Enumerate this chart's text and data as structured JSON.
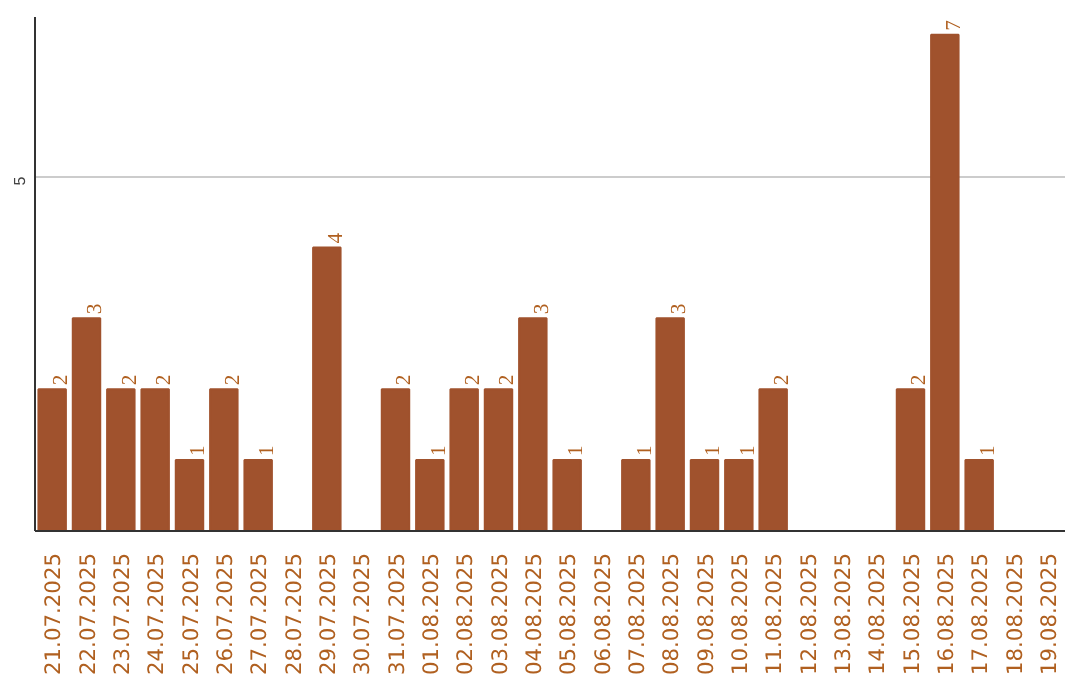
{
  "chart_data": {
    "type": "bar",
    "categories": [
      "21.07.2025",
      "22.07.2025",
      "23.07.2025",
      "24.07.2025",
      "25.07.2025",
      "26.07.2025",
      "27.07.2025",
      "28.07.2025",
      "29.07.2025",
      "30.07.2025",
      "31.07.2025",
      "01.08.2025",
      "02.08.2025",
      "03.08.2025",
      "04.08.2025",
      "05.08.2025",
      "06.08.2025",
      "07.08.2025",
      "08.08.2025",
      "09.08.2025",
      "10.08.2025",
      "11.08.2025",
      "12.08.2025",
      "13.08.2025",
      "14.08.2025",
      "15.08.2025",
      "16.08.2025",
      "17.08.2025",
      "18.08.2025",
      "19.08.2025"
    ],
    "values": [
      2,
      3,
      2,
      2,
      1,
      2,
      1,
      0,
      4,
      0,
      2,
      1,
      2,
      2,
      3,
      1,
      0,
      1,
      3,
      1,
      1,
      2,
      0,
      0,
      0,
      2,
      7,
      1,
      0,
      0
    ],
    "value_labels": [
      "2",
      "3",
      "2",
      "2",
      "1",
      "2",
      "1",
      null,
      "4",
      null,
      "2",
      "1",
      "2",
      "2",
      "3",
      "1",
      null,
      "1",
      "3",
      "1",
      "1",
      "2",
      null,
      null,
      null,
      "2",
      "7",
      "1",
      null,
      null
    ],
    "color": "#a0522d",
    "ylim": [
      0,
      7.25
    ],
    "yticks": [
      5
    ],
    "grid": "y"
  }
}
